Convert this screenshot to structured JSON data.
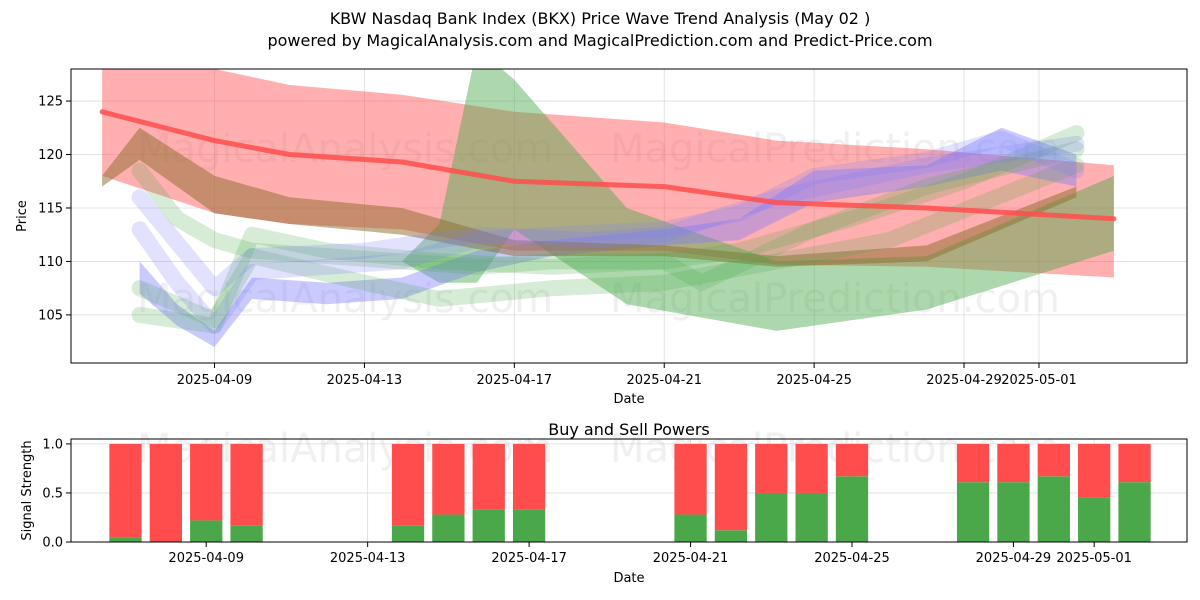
{
  "title": "KBW Nasdaq Bank Index (BKX) Price Wave Trend Analysis (May 02 )",
  "subtitle": "powered by MagicalAnalysis.com and MagicalPrediction.com and Predict-Price.com",
  "watermarks": [
    "MagicalAnalysis.com",
    "MagicalPrediction.com"
  ],
  "colors": {
    "red": "#ff4d4d",
    "green": "#4aa84a",
    "blue": "#7a7aff",
    "brown": "#8b6b2e"
  },
  "chart_data": [
    {
      "type": "area",
      "xlabel": "Date",
      "ylabel": "Price",
      "x_ticks": [
        "2025-04-09",
        "2025-04-13",
        "2025-04-17",
        "2025-04-21",
        "2025-04-25",
        "2025-04-29",
        "2025-05-01"
      ],
      "y_ticks": [
        105,
        110,
        115,
        120,
        125
      ],
      "xlim": [
        "2025-04-05",
        "2025-05-04"
      ],
      "ylim": [
        100.5,
        128
      ],
      "grid": true,
      "trend_line": {
        "color": "#ff4d4d",
        "x": [
          "2025-04-06",
          "2025-04-09",
          "2025-04-11",
          "2025-04-14",
          "2025-04-17",
          "2025-04-21",
          "2025-04-24",
          "2025-04-28",
          "2025-05-03"
        ],
        "y": [
          124,
          121.3,
          120,
          119.3,
          117.5,
          117,
          115.5,
          115,
          114
        ]
      },
      "bands": [
        {
          "color": "#ff4d4d",
          "opacity": 0.45,
          "x": [
            "2025-04-06",
            "2025-04-09",
            "2025-04-11",
            "2025-04-14",
            "2025-04-17",
            "2025-04-21",
            "2025-04-24",
            "2025-04-28",
            "2025-05-03"
          ],
          "upper": [
            130,
            128,
            126.5,
            125.6,
            124,
            123,
            121.3,
            120.5,
            119
          ],
          "lower": [
            118,
            114.5,
            113.5,
            113,
            111,
            111,
            109.7,
            109.5,
            108.5
          ]
        },
        {
          "color": "#4aa84a",
          "opacity": 0.45,
          "x": [
            "2025-04-06",
            "2025-04-09",
            "2025-04-11",
            "2025-04-14",
            "2025-04-15",
            "2025-04-16",
            "2025-04-17",
            "2025-04-20",
            "2025-04-24",
            "2025-04-28",
            "2025-05-03"
          ],
          "upper": [
            117,
            112.5,
            110.5,
            110,
            113.5,
            130,
            127,
            115,
            110,
            110.5,
            118
          ],
          "lower": [
            117,
            112.5,
            110.5,
            110,
            108,
            108,
            113,
            106,
            103.5,
            105.5,
            111
          ]
        },
        {
          "color": "#7a7aff",
          "opacity": 0.4,
          "x": [
            "2025-04-07",
            "2025-04-08",
            "2025-04-09",
            "2025-04-10",
            "2025-04-12",
            "2025-04-14",
            "2025-04-16",
            "2025-04-18",
            "2025-04-21",
            "2025-04-23",
            "2025-04-25",
            "2025-04-28",
            "2025-04-30",
            "2025-05-02"
          ],
          "upper": [
            110,
            106,
            103.5,
            108.5,
            108,
            108.5,
            111,
            112,
            113,
            114,
            118.5,
            119,
            122.5,
            120
          ],
          "lower": [
            107,
            104,
            102,
            106.5,
            106,
            106.5,
            109,
            110.5,
            111.5,
            112,
            115.5,
            117,
            118.5,
            117
          ]
        },
        {
          "color": "#8b6b2e",
          "opacity": 0.5,
          "x": [
            "2025-04-06",
            "2025-04-07",
            "2025-04-09",
            "2025-04-11",
            "2025-04-14",
            "2025-04-17",
            "2025-04-21",
            "2025-04-24",
            "2025-04-28",
            "2025-05-02"
          ],
          "upper": [
            118,
            122.5,
            118,
            116,
            115,
            112,
            111.5,
            110.5,
            111.5,
            117
          ],
          "lower": [
            117,
            119.5,
            114.5,
            113.5,
            112.5,
            110.5,
            110.5,
            109.5,
            110,
            116
          ]
        }
      ],
      "ribbons": [
        {
          "color": "#4aa84a",
          "x": [
            "2025-04-07",
            "2025-04-08",
            "2025-04-09",
            "2025-04-10",
            "2025-04-12",
            "2025-04-14",
            "2025-04-16",
            "2025-04-18",
            "2025-04-21",
            "2025-04-22",
            "2025-04-25",
            "2025-04-28",
            "2025-05-02"
          ],
          "y": [
            118.5,
            114,
            112,
            111,
            110.5,
            110,
            109.5,
            110,
            110,
            108,
            113,
            117,
            120.5
          ]
        },
        {
          "color": "#4aa84a",
          "x": [
            "2025-04-07",
            "2025-04-09",
            "2025-04-10",
            "2025-04-12",
            "2025-04-15",
            "2025-04-18",
            "2025-04-21",
            "2025-04-23",
            "2025-04-26",
            "2025-04-29",
            "2025-05-02"
          ],
          "y": [
            105,
            104,
            112.5,
            111,
            110,
            109.5,
            110,
            111,
            114,
            117.5,
            122
          ]
        },
        {
          "color": "#4aa84a",
          "x": [
            "2025-04-07",
            "2025-04-09",
            "2025-04-10",
            "2025-04-13",
            "2025-04-15",
            "2025-04-18",
            "2025-04-21",
            "2025-04-24",
            "2025-04-27",
            "2025-05-02"
          ],
          "y": [
            107.5,
            104.5,
            110.5,
            108,
            106.5,
            107.5,
            108,
            110,
            112,
            119
          ]
        },
        {
          "color": "#7a7aff",
          "x": [
            "2025-04-07",
            "2025-04-08",
            "2025-04-09",
            "2025-04-10",
            "2025-04-12",
            "2025-04-14",
            "2025-04-16",
            "2025-04-18",
            "2025-04-21",
            "2025-04-23",
            "2025-04-25",
            "2025-04-28",
            "2025-04-30",
            "2025-05-02"
          ],
          "y": [
            113,
            108,
            104,
            109,
            109.5,
            110,
            112,
            112.5,
            113,
            114.5,
            118,
            119.5,
            121.5,
            118.5
          ]
        },
        {
          "color": "#7a7aff",
          "x": [
            "2025-04-07",
            "2025-04-09",
            "2025-04-10",
            "2025-04-13",
            "2025-04-16",
            "2025-04-19",
            "2025-04-21",
            "2025-04-24",
            "2025-04-28",
            "2025-05-02"
          ],
          "y": [
            116,
            107.5,
            110.5,
            111,
            112.5,
            112,
            112.5,
            116,
            119,
            121
          ]
        }
      ]
    },
    {
      "type": "bar",
      "title": "Buy and Sell Powers",
      "xlabel": "Date",
      "ylabel": "Signal Strength",
      "x_ticks": [
        "2025-04-09",
        "2025-04-13",
        "2025-04-17",
        "2025-04-21",
        "2025-04-25",
        "2025-04-29",
        "2025-05-01"
      ],
      "y_ticks": [
        "0.0",
        "0.5",
        "1.0"
      ],
      "ylim": [
        0,
        1.05
      ],
      "grid": true,
      "series": [
        {
          "color": "#4aa84a"
        },
        {
          "color": "#ff4d4d"
        }
      ],
      "bars": [
        {
          "date": "2025-04-07",
          "buy": 0.05,
          "sell": 0.95
        },
        {
          "date": "2025-04-08",
          "buy": 0.0,
          "sell": 1.0
        },
        {
          "date": "2025-04-09",
          "buy": 0.22,
          "sell": 0.78
        },
        {
          "date": "2025-04-10",
          "buy": 0.17,
          "sell": 0.83
        },
        {
          "date": "2025-04-14",
          "buy": 0.17,
          "sell": 0.83
        },
        {
          "date": "2025-04-15",
          "buy": 0.28,
          "sell": 0.72
        },
        {
          "date": "2025-04-16",
          "buy": 0.33,
          "sell": 0.67
        },
        {
          "date": "2025-04-17",
          "buy": 0.33,
          "sell": 0.67
        },
        {
          "date": "2025-04-21",
          "buy": 0.28,
          "sell": 0.72
        },
        {
          "date": "2025-04-22",
          "buy": 0.12,
          "sell": 0.88
        },
        {
          "date": "2025-04-23",
          "buy": 0.5,
          "sell": 0.5
        },
        {
          "date": "2025-04-24",
          "buy": 0.5,
          "sell": 0.5
        },
        {
          "date": "2025-04-25",
          "buy": 0.67,
          "sell": 0.33
        },
        {
          "date": "2025-04-28",
          "buy": 0.61,
          "sell": 0.39
        },
        {
          "date": "2025-04-29",
          "buy": 0.61,
          "sell": 0.39
        },
        {
          "date": "2025-04-30",
          "buy": 0.67,
          "sell": 0.33
        },
        {
          "date": "2025-05-01",
          "buy": 0.45,
          "sell": 0.55
        },
        {
          "date": "2025-05-02",
          "buy": 0.61,
          "sell": 0.39
        }
      ]
    }
  ]
}
